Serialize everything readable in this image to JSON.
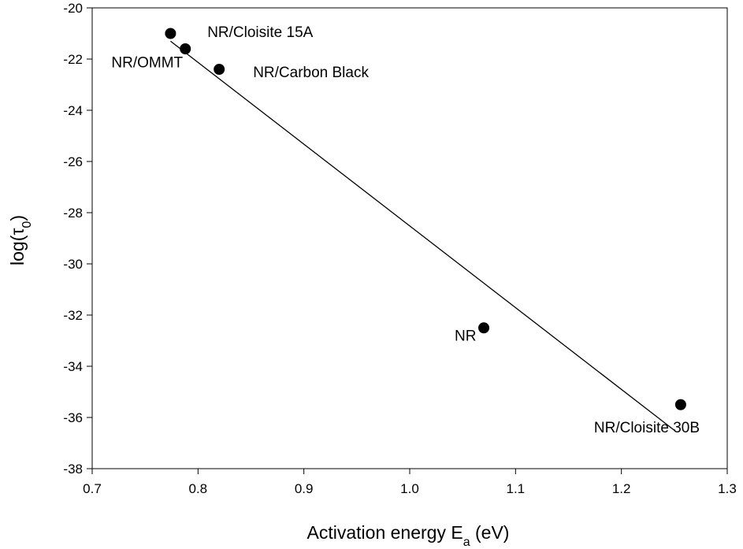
{
  "chart_data": {
    "type": "scatter",
    "title": "",
    "xlabel": {
      "main": "Activation energy E",
      "sub": "a",
      "suffix": " (eV)"
    },
    "ylabel": {
      "main": "log(τ",
      "sub": "0",
      "suffix": ")"
    },
    "xlim": [
      0.7,
      1.3
    ],
    "ylim": [
      -38,
      -20
    ],
    "xticks": [
      0.7,
      0.8,
      0.9,
      1.0,
      1.1,
      1.2,
      1.3
    ],
    "xtick_labels": [
      "0.7",
      "0.8",
      "0.9",
      "1.0",
      "1.1",
      "1.2",
      "1.3"
    ],
    "yticks": [
      -20,
      -22,
      -24,
      -26,
      -28,
      -30,
      -32,
      -34,
      -36,
      -38
    ],
    "ytick_labels": [
      "-20",
      "-22",
      "-24",
      "-26",
      "-28",
      "-30",
      "-32",
      "-34",
      "-36",
      "-38"
    ],
    "grid": false,
    "points": [
      {
        "name": "NR/OMMT",
        "x": 0.774,
        "y": -21.0
      },
      {
        "name": "NR/Cloisite 15A",
        "x": 0.788,
        "y": -21.6
      },
      {
        "name": "NR/Carbon Black",
        "x": 0.82,
        "y": -22.4
      },
      {
        "name": "NR",
        "x": 1.07,
        "y": -32.5
      },
      {
        "name": "NR/Cloisite 30B",
        "x": 1.256,
        "y": -35.5
      }
    ],
    "fit_line": {
      "x": [
        0.774,
        1.25
      ],
      "y": [
        -21.3,
        -36.5
      ]
    },
    "colors": {
      "marker": "#000000",
      "line": "#000000",
      "axis": "#000000"
    }
  }
}
